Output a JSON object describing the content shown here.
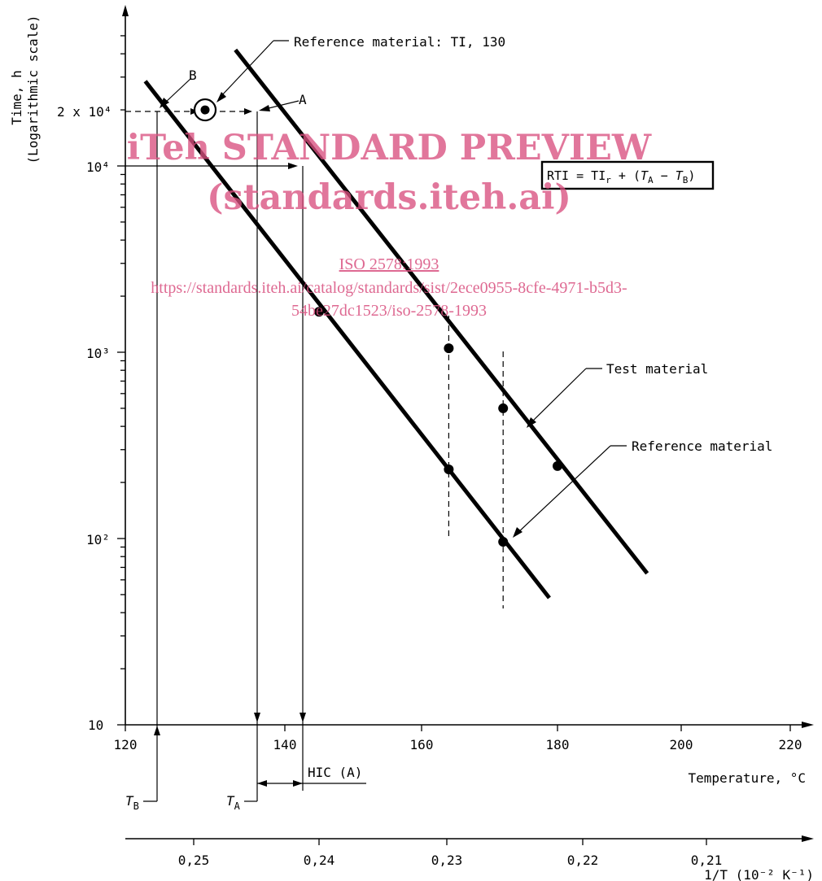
{
  "chart_data": {
    "type": "line",
    "y_axis": {
      "label_line1": "Time, h",
      "label_line2": "(Logarithmic scale)",
      "scale": "log",
      "range": [
        10,
        50000
      ],
      "tick_labels": [
        {
          "value": 10,
          "text": "10"
        },
        {
          "value": 100,
          "text": "10²"
        },
        {
          "value": 1000,
          "text": "10³"
        },
        {
          "value": 10000,
          "text": "10⁴"
        },
        {
          "value": 20000,
          "text": "2 x 10⁴"
        }
      ]
    },
    "x_axis_temperature": {
      "label": "Temperature, °C",
      "range": [
        120,
        220
      ],
      "ticks": [
        "120",
        "140",
        "160",
        "180",
        "200",
        "220"
      ]
    },
    "x_axis_reciprocal": {
      "label": "1/T (10⁻² K⁻¹)",
      "ticks": [
        "0,25",
        "0,24",
        "0,23",
        "0,22",
        "0,21"
      ]
    },
    "series": [
      {
        "name": "Test material",
        "line": [
          [
            133.8,
            42000
          ],
          [
            194.5,
            65
          ]
        ],
        "points": [
          [
            164,
            1050
          ],
          [
            172,
            500
          ],
          [
            180,
            245
          ]
        ]
      },
      {
        "name": "Reference material",
        "line": [
          [
            122.5,
            28500
          ],
          [
            178.8,
            48
          ]
        ],
        "points": [
          [
            145,
            1650
          ],
          [
            164,
            235
          ],
          [
            172,
            96
          ]
        ]
      }
    ],
    "reference_marker": {
      "label": "Reference material: TI, 130",
      "temperature": 130,
      "time": 20000
    },
    "annotations": {
      "point_a": "A",
      "point_b": "B",
      "t_a": "T",
      "t_a_sub": "A",
      "t_b": "T",
      "t_b_sub": "B",
      "hic": "HIC (A)",
      "rti_formula": "RTI = TIr + (TA − TB)",
      "rti_parts": {
        "a": "RTI = TI",
        "b": "r",
        "c": " + (",
        "d": "T",
        "e": "A",
        "f": " − ",
        "g": "T",
        "h": "B",
        "i": ")"
      }
    },
    "dashed_temperatures": [
      164,
      172
    ],
    "grid": false
  },
  "watermark": {
    "line1": "iTeh STANDARD PREVIEW",
    "line2": "(standards.iteh.ai)",
    "line3": "ISO 2578:1993",
    "line4": "https://standards.iteh.ai/catalog/standards/sist/2ece0955-8cfe-4971-b5d3-",
    "line5": "54be27dc1523/iso-2578-1993",
    "color": "#d9507f"
  }
}
